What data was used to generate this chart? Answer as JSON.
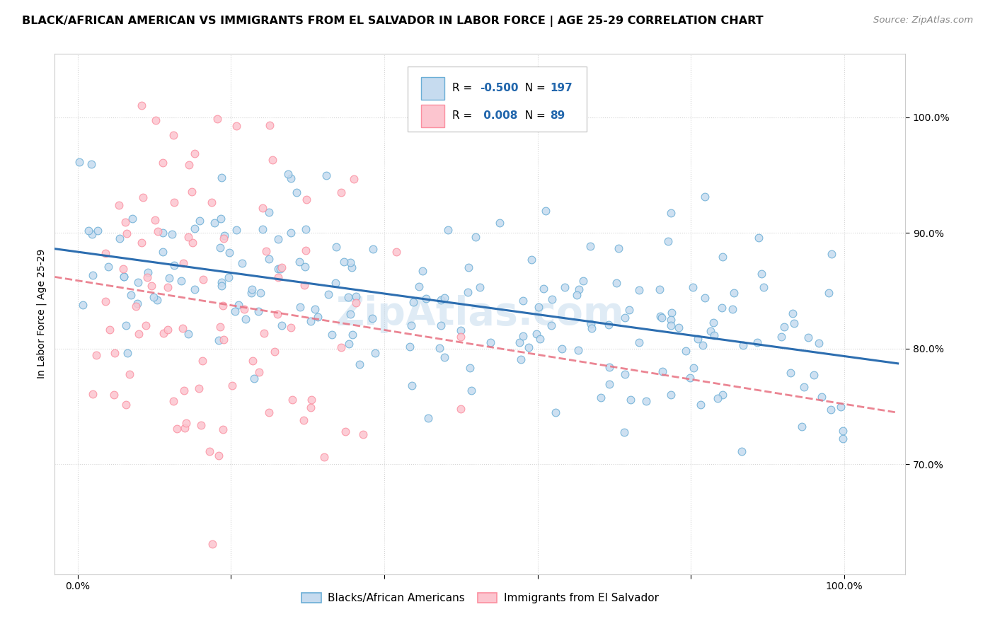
{
  "title": "BLACK/AFRICAN AMERICAN VS IMMIGRANTS FROM EL SALVADOR IN LABOR FORCE | AGE 25-29 CORRELATION CHART",
  "source": "Source: ZipAtlas.com",
  "ylabel": "In Labor Force | Age 25-29",
  "x_ticks": [
    0.0,
    0.2,
    0.4,
    0.6,
    0.8,
    1.0
  ],
  "x_tick_labels": [
    "0.0%",
    "",
    "",
    "",
    "",
    "100.0%"
  ],
  "y_ticks": [
    0.7,
    0.8,
    0.9,
    1.0
  ],
  "y_tick_labels": [
    "70.0%",
    "80.0%",
    "90.0%",
    "100.0%"
  ],
  "xlim": [
    -0.03,
    1.08
  ],
  "ylim": [
    0.605,
    1.055
  ],
  "blue_R": -0.5,
  "blue_N": 197,
  "pink_R": 0.008,
  "pink_N": 89,
  "blue_dot_face": "#c6dbef",
  "blue_dot_edge": "#6baed6",
  "pink_dot_face": "#fcc5cf",
  "pink_dot_edge": "#fb8fa0",
  "blue_line_color": "#2166ac",
  "pink_line_color": "#e87080",
  "blue_legend_fill": "#c6dbef",
  "blue_legend_edge": "#6baed6",
  "pink_legend_fill": "#fcc5cf",
  "pink_legend_edge": "#fb8fa0",
  "legend_label_blue": "Blacks/African Americans",
  "legend_label_pink": "Immigrants from El Salvador",
  "legend_R_color": "#2166ac",
  "legend_N_color": "#2166ac",
  "background_color": "#ffffff",
  "grid_color": "#d0d0d0",
  "title_fontsize": 11.5,
  "source_fontsize": 9.5,
  "ylabel_fontsize": 10,
  "tick_fontsize": 10,
  "legend_fontsize": 11,
  "dot_size": 60,
  "dot_alpha": 0.85,
  "blue_line_solid": true,
  "pink_line_dashed": true,
  "watermark_text": "ZipAtlas.com",
  "watermark_color": "#b0cfe8",
  "watermark_alpha": 0.4,
  "watermark_fontsize": 40
}
